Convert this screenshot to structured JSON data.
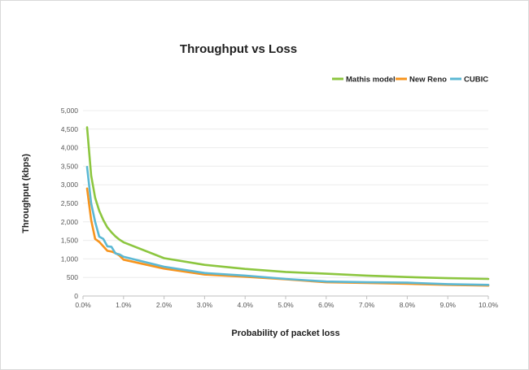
{
  "chart_data": {
    "type": "line",
    "title": "Throughput vs Loss",
    "xlabel": "Probability of packet loss",
    "ylabel": "Throughput (kbps)",
    "xlim": [
      0,
      10
    ],
    "ylim": [
      0,
      5000
    ],
    "x_ticks": [
      "0.0%",
      "1.0%",
      "2.0%",
      "3.0%",
      "4.0%",
      "5.0%",
      "6.0%",
      "7.0%",
      "8.0%",
      "9.0%",
      "10.0%"
    ],
    "y_ticks": [
      "0",
      "500",
      "1,000",
      "1,500",
      "2,000",
      "2,500",
      "3,000",
      "3,500",
      "4,000",
      "4,500",
      "5,000"
    ],
    "x_tick_values": [
      0,
      1,
      2,
      3,
      4,
      5,
      6,
      7,
      8,
      9,
      10
    ],
    "y_tick_values": [
      0,
      500,
      1000,
      1500,
      2000,
      2500,
      3000,
      3500,
      4000,
      4500,
      5000
    ],
    "grid": true,
    "legend_position": "top-right",
    "series": [
      {
        "name": "Mathis model",
        "color": "#8cc63f",
        "x": [
          0.1,
          0.2,
          0.3,
          0.4,
          0.5,
          0.6,
          0.7,
          0.8,
          0.9,
          1.0,
          2.0,
          3.0,
          4.0,
          5.0,
          6.0,
          7.0,
          8.0,
          9.0,
          10.0
        ],
        "y": [
          4550,
          3250,
          2650,
          2300,
          2050,
          1850,
          1720,
          1610,
          1520,
          1450,
          1020,
          840,
          730,
          650,
          600,
          550,
          510,
          480,
          460
        ]
      },
      {
        "name": "New Reno",
        "color": "#f7941d",
        "x": [
          0.1,
          0.2,
          0.3,
          0.4,
          0.5,
          0.6,
          0.7,
          0.8,
          0.9,
          1.0,
          2.0,
          3.0,
          4.0,
          5.0,
          6.0,
          7.0,
          8.0,
          9.0,
          10.0
        ],
        "y": [
          2900,
          2050,
          1540,
          1460,
          1340,
          1220,
          1200,
          1160,
          1090,
          980,
          740,
          580,
          520,
          450,
          370,
          350,
          330,
          300,
          280
        ]
      },
      {
        "name": "CUBIC",
        "color": "#5bb8d4",
        "x": [
          0.1,
          0.2,
          0.3,
          0.4,
          0.5,
          0.6,
          0.7,
          0.8,
          0.9,
          1.0,
          2.0,
          3.0,
          4.0,
          5.0,
          6.0,
          7.0,
          8.0,
          9.0,
          10.0
        ],
        "y": [
          3480,
          2500,
          2000,
          1600,
          1540,
          1340,
          1330,
          1150,
          1120,
          1060,
          790,
          620,
          550,
          460,
          390,
          370,
          360,
          320,
          300
        ]
      }
    ]
  }
}
